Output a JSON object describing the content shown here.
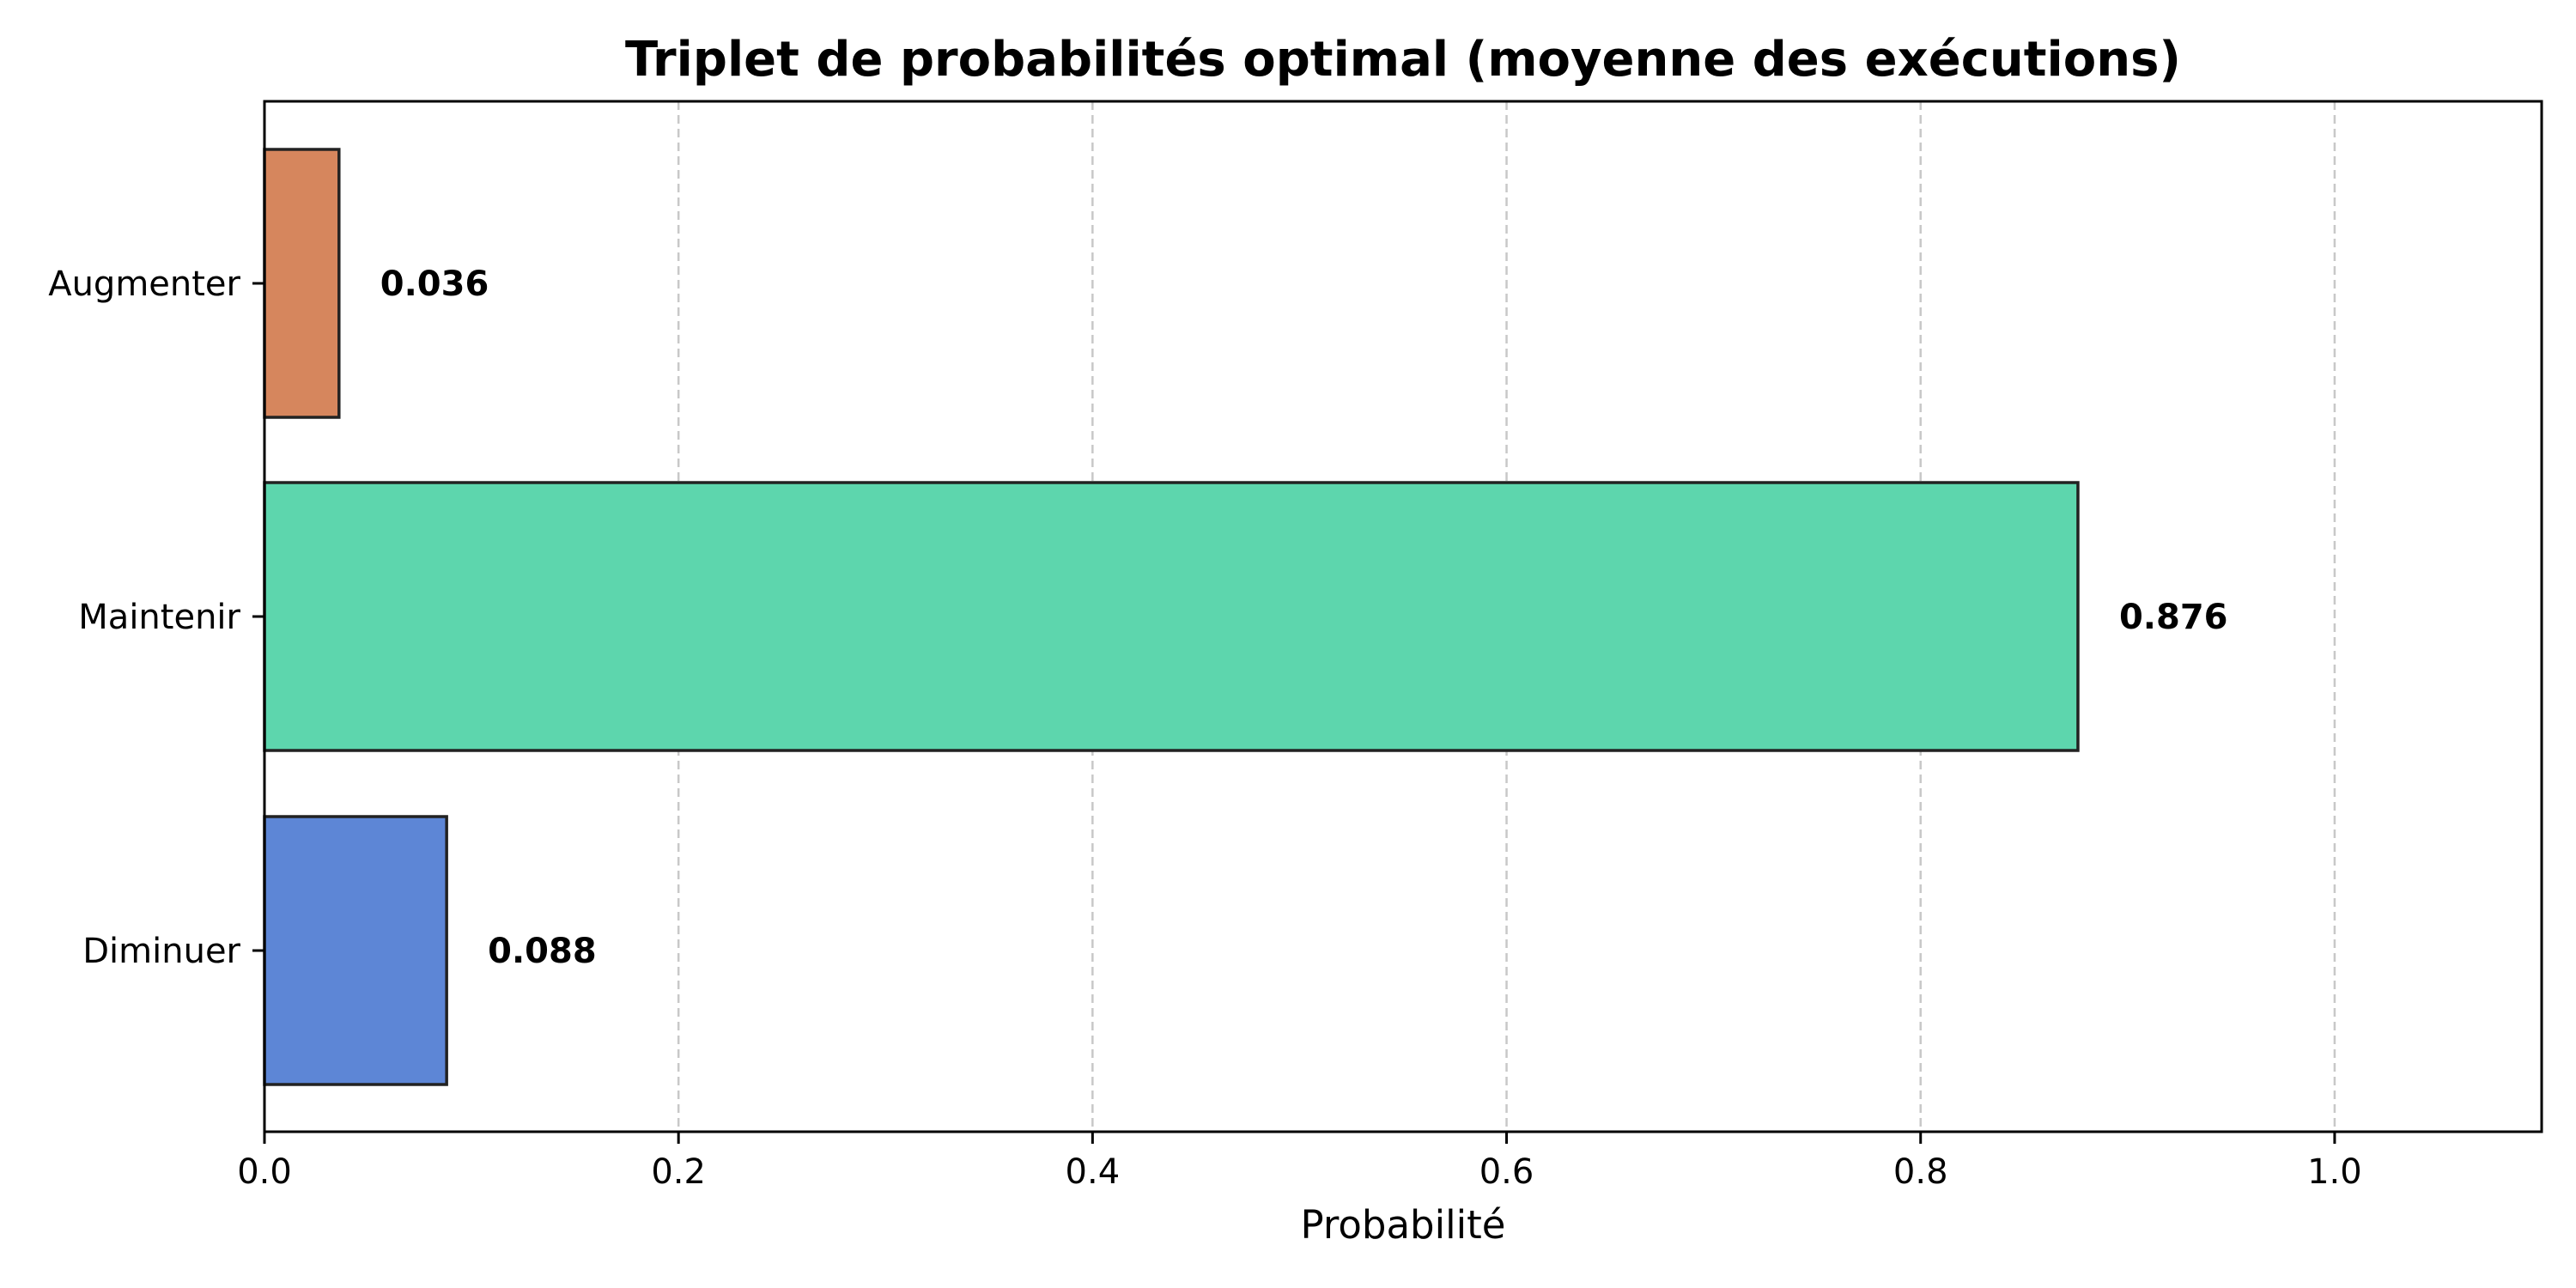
{
  "chart_data": {
    "type": "bar",
    "orientation": "horizontal",
    "title": "Triplet de probabilités optimal (moyenne des exécutions)",
    "xlabel": "Probabilité",
    "ylabel": "",
    "categories": [
      "Augmenter",
      "Maintenir",
      "Diminuer"
    ],
    "values": [
      0.036,
      0.876,
      0.088
    ],
    "value_labels": [
      "0.036",
      "0.876",
      "0.088"
    ],
    "bar_colors": [
      "#d6865d",
      "#5dd6ad",
      "#5d86d6"
    ],
    "bar_edge_color": "#222222",
    "xlim": [
      0,
      1.1
    ],
    "xticks": [
      0.0,
      0.2,
      0.4,
      0.6,
      0.8,
      1.0
    ],
    "xtick_labels": [
      "0.0",
      "0.2",
      "0.4",
      "0.6",
      "0.8",
      "1.0"
    ],
    "grid": {
      "axis": "x",
      "style": "dashed",
      "color": "#c8c8c8"
    }
  }
}
